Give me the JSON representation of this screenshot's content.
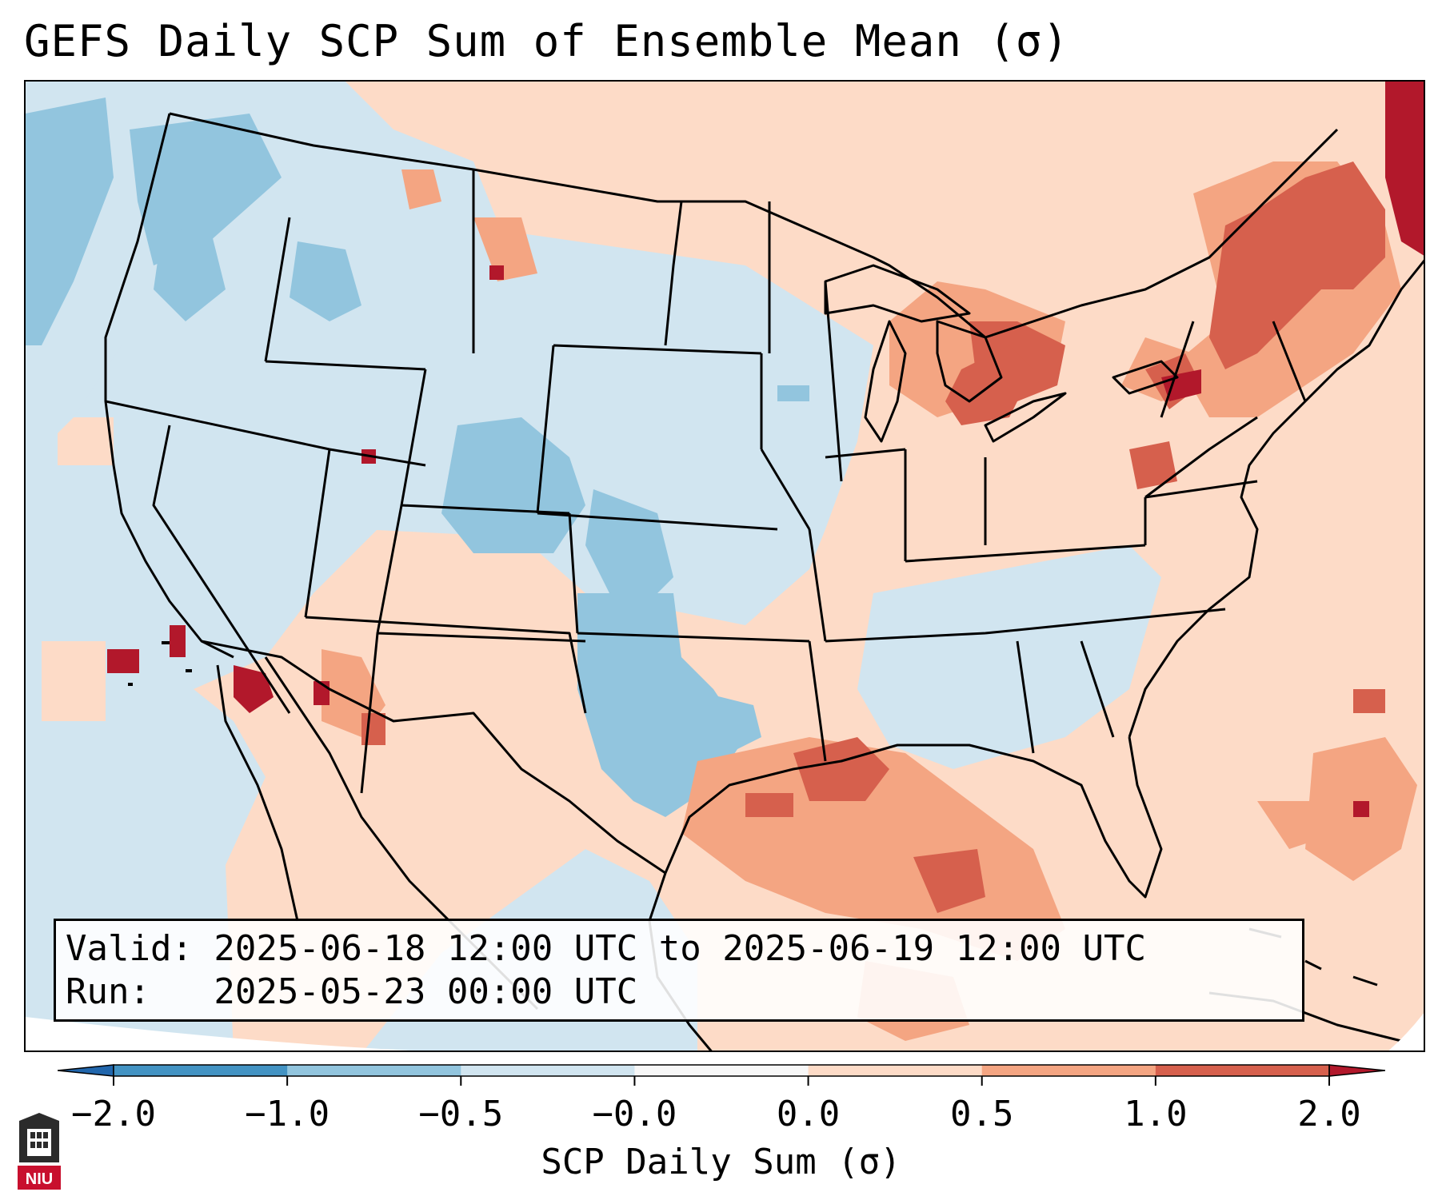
{
  "title": "GEFS Daily SCP Sum of Ensemble Mean (σ)",
  "info": {
    "valid_line": "Valid: 2025-06-18 12:00 UTC to 2025-06-19 12:00 UTC",
    "run_line": "Run:   2025-05-23 00:00 UTC"
  },
  "colorbar": {
    "label": "SCP Daily Sum (σ)",
    "ticks": [
      "−2.0",
      "−1.0",
      "−0.5",
      "−0.0",
      "0.0",
      "0.5",
      "1.0",
      "2.0"
    ],
    "bins": [
      "#2166ac",
      "#4393c3",
      "#92c5de",
      "#d1e5f0",
      "#f7f7f7",
      "#fddbc7",
      "#f4a582",
      "#d6604d",
      "#b2182b"
    ]
  },
  "logo": {
    "text": "NIU"
  },
  "map": {
    "ocean_color": "#d1e5f0",
    "line_color": "#000000",
    "anomaly_regions": [
      {
        "name": "great-lakes",
        "level": 1.0
      },
      {
        "name": "gulf-coast",
        "level": 1.0
      },
      {
        "name": "new-england",
        "level": 1.0
      },
      {
        "name": "southern-plains",
        "level": -0.5
      },
      {
        "name": "pacific-northwest-offshore",
        "level": -0.5
      }
    ]
  }
}
